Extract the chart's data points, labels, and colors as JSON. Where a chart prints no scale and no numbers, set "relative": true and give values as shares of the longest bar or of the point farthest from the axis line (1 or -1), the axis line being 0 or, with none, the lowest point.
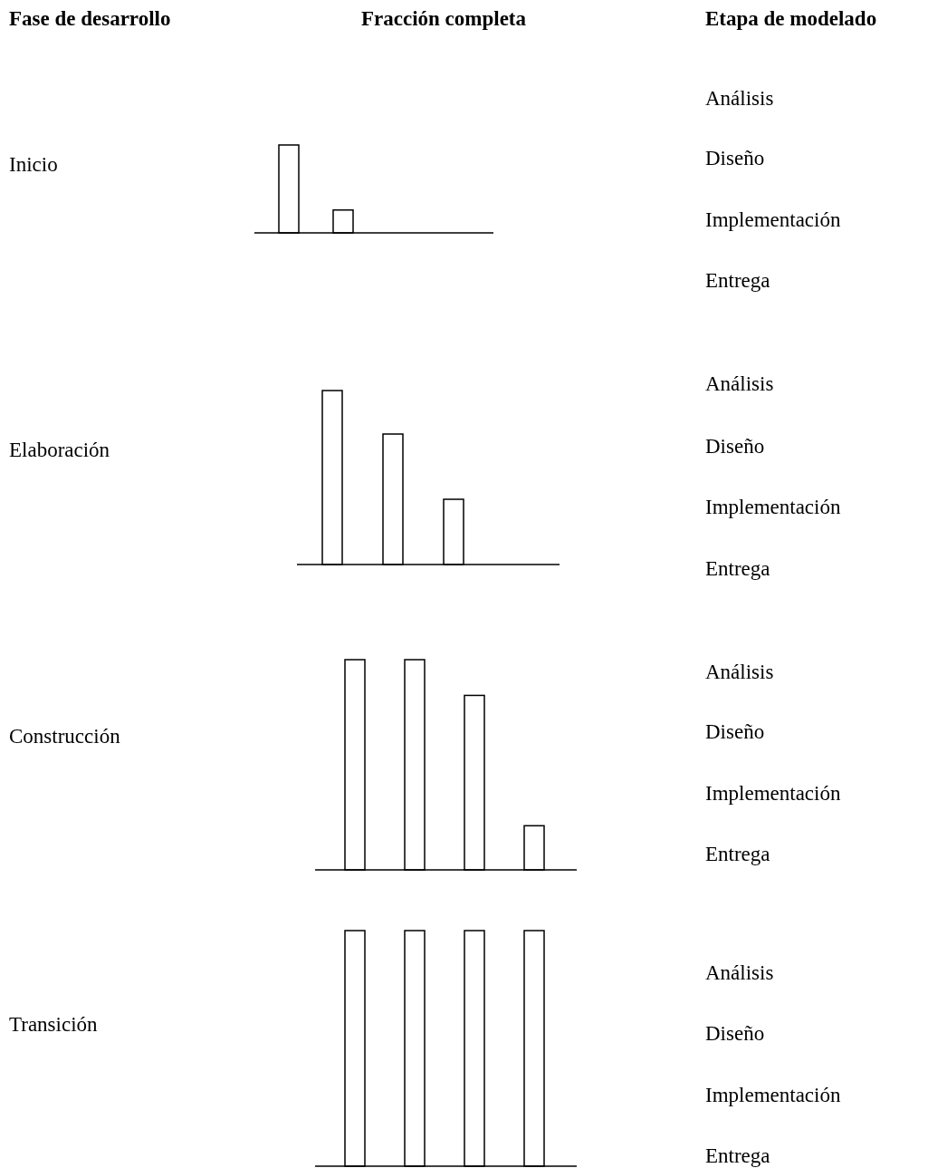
{
  "chart_data": [
    {
      "type": "other",
      "annotations": [
        "Fase de desarrollo",
        "Fracción completa",
        "Etapa de modelado"
      ]
    },
    {
      "type": "bar",
      "ylabel": "Inicio",
      "categories": [
        null,
        null
      ],
      "values": [
        1,
        0.26
      ],
      "relative": true,
      "color": "#ffffff",
      "annotations": [
        "Análisis",
        "Diseño",
        "Implementación",
        "Entrega"
      ]
    },
    {
      "type": "bar",
      "ylabel": "Elaboración",
      "categories": [
        null,
        null,
        null
      ],
      "values": [
        1,
        0.75,
        0.375
      ],
      "relative": true,
      "color": "#ffffff",
      "annotations": [
        "Análisis",
        "Diseño",
        "Implementación",
        "Entrega"
      ]
    },
    {
      "type": "bar",
      "ylabel": "Construcción",
      "categories": [
        null,
        null,
        null,
        null
      ],
      "values": [
        1,
        1,
        0.83,
        0.21
      ],
      "relative": true,
      "color": "#ffffff",
      "annotations": [
        "Análisis",
        "Diseño",
        "Implementación",
        "Entrega"
      ]
    },
    {
      "type": "bar",
      "ylabel": "Transición",
      "categories": [
        null,
        null,
        null,
        null
      ],
      "values": [
        1,
        1,
        1,
        1
      ],
      "relative": true,
      "color": "#ffffff",
      "annotations": [
        "Análisis",
        "Diseño",
        "Implementación",
        "Entrega"
      ]
    }
  ]
}
